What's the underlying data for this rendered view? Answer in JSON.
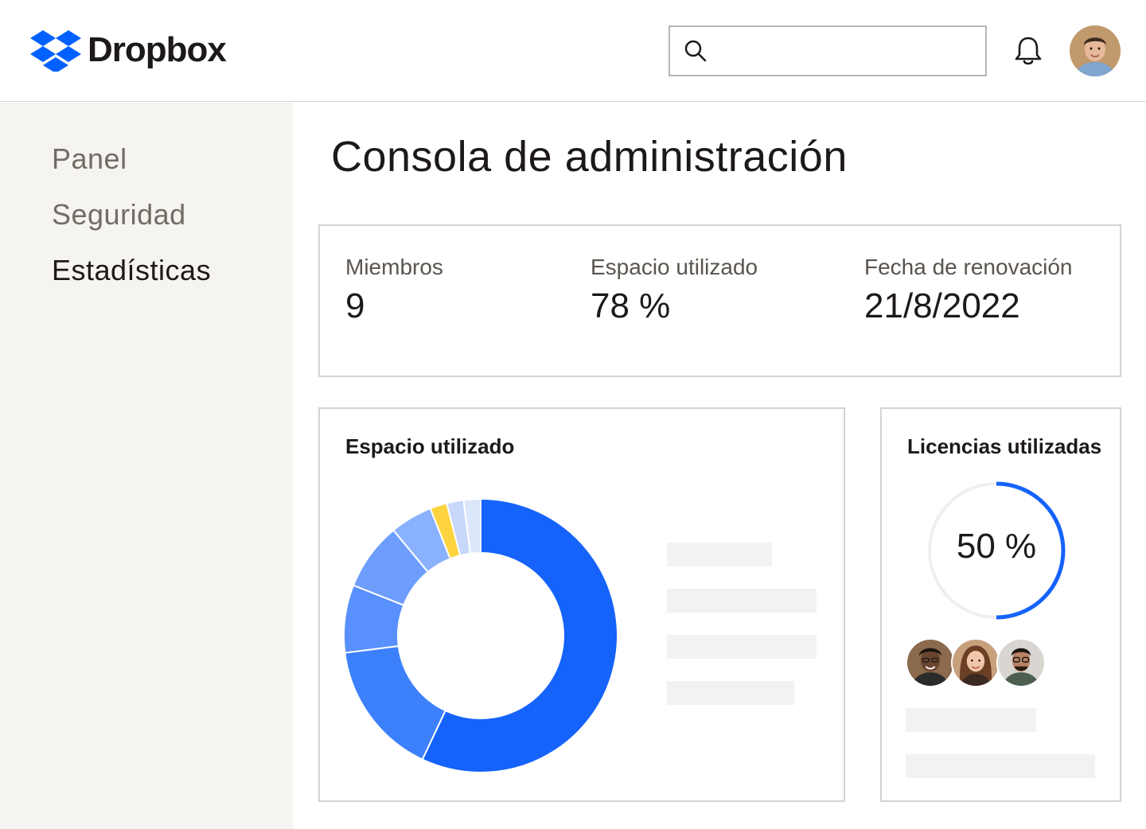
{
  "header": {
    "brand": "Dropbox",
    "brand_color": "#0061fe",
    "search": {
      "placeholder": "",
      "value": ""
    }
  },
  "sidebar": {
    "items": [
      {
        "label": "Panel",
        "active": false
      },
      {
        "label": "Seguridad",
        "active": false
      },
      {
        "label": "Estadísticas",
        "active": true
      }
    ]
  },
  "main": {
    "title": "Consola de administración",
    "stats": [
      {
        "label": "Miembros",
        "value": "9"
      },
      {
        "label": "Espacio utilizado",
        "value": "78 %"
      },
      {
        "label": "Fecha de renovación",
        "value": "21/8/2022"
      }
    ],
    "space_card": {
      "title": "Espacio utilizado"
    },
    "licenses_card": {
      "title": "Licencias utilizadas",
      "percent_label": "50 %",
      "percent": 50
    }
  },
  "chart_data": {
    "type": "pie",
    "donut": true,
    "values": [
      57,
      16,
      8,
      8,
      5,
      2,
      2,
      2
    ],
    "colors": [
      "#1563fb",
      "#3d80fc",
      "#5890fd",
      "#6e9efd",
      "#8ab1fd",
      "#fdd43f",
      "#c8d8fb",
      "#dce6fb"
    ]
  }
}
